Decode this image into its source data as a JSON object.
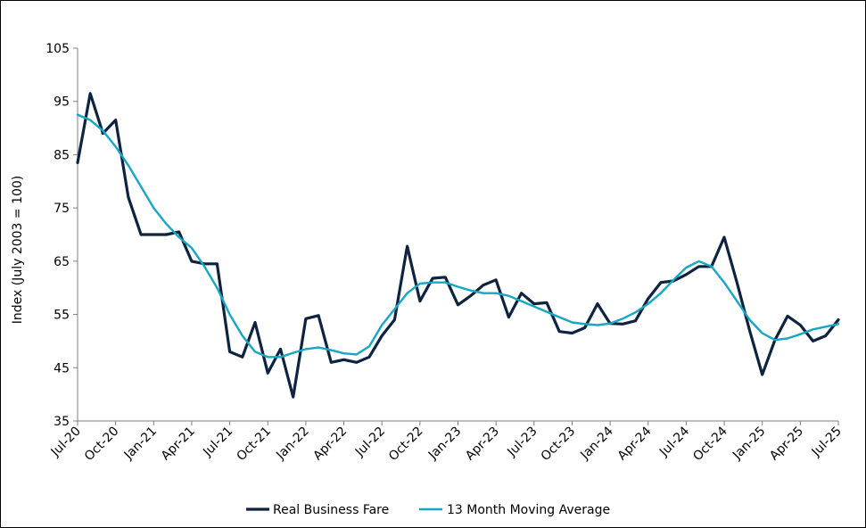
{
  "chart_data": {
    "type": "line",
    "title": "",
    "ylabel": "Index (July 2003 = 100)",
    "xlabel": "",
    "ylim": [
      35,
      105
    ],
    "yticks": [
      35,
      45,
      55,
      65,
      75,
      85,
      95,
      105
    ],
    "grid": false,
    "legend_position": "bottom",
    "x_tick_labels": [
      "Jul-20",
      "Oct-20",
      "Jan-21",
      "Apr-21",
      "Jul-21",
      "Oct-21",
      "Jan-22",
      "Apr-22",
      "Jul-22",
      "Oct-22",
      "Jan-23",
      "Apr-23",
      "Jul-23",
      "Oct-23",
      "Jan-24",
      "Apr-24",
      "Jul-24",
      "Oct-24",
      "Jan-25",
      "Apr-25",
      "Jul-25"
    ],
    "x": [
      "Jul-20",
      "Aug-20",
      "Sep-20",
      "Oct-20",
      "Nov-20",
      "Dec-20",
      "Jan-21",
      "Feb-21",
      "Mar-21",
      "Apr-21",
      "May-21",
      "Jun-21",
      "Jul-21",
      "Aug-21",
      "Sep-21",
      "Oct-21",
      "Nov-21",
      "Dec-21",
      "Jan-22",
      "Feb-22",
      "Mar-22",
      "Apr-22",
      "May-22",
      "Jun-22",
      "Jul-22",
      "Aug-22",
      "Sep-22",
      "Oct-22",
      "Nov-22",
      "Dec-22",
      "Jan-23",
      "Feb-23",
      "Mar-23",
      "Apr-23",
      "May-23",
      "Jun-23",
      "Jul-23",
      "Aug-23",
      "Sep-23",
      "Oct-23",
      "Nov-23",
      "Dec-23",
      "Jan-24",
      "Feb-24",
      "Mar-24",
      "Apr-24",
      "May-24",
      "Jun-24",
      "Jul-24",
      "Aug-24",
      "Sep-24",
      "Oct-24",
      "Nov-24",
      "Dec-24",
      "Jan-25",
      "Feb-25",
      "Mar-25",
      "Apr-25",
      "May-25",
      "Jun-25",
      "Jul-25"
    ],
    "series": [
      {
        "name": "Real Business Fare",
        "color": "#0d2340",
        "values": [
          83.5,
          96.5,
          89,
          91.5,
          77,
          70,
          70,
          70,
          70.5,
          65,
          64.5,
          64.5,
          48,
          47,
          53.5,
          44,
          48.5,
          39.5,
          54.2,
          54.8,
          46,
          46.5,
          46,
          47,
          51,
          54,
          67.8,
          57.5,
          61.8,
          62,
          56.8,
          58.5,
          60.5,
          61.5,
          54.5,
          59,
          57,
          57.2,
          51.8,
          51.5,
          52.5,
          57,
          53.3,
          53.2,
          53.8,
          58,
          61,
          61.3,
          62.5,
          64,
          64,
          69.5,
          61,
          52,
          43.7,
          50.2,
          54.7,
          53,
          50,
          51,
          54
        ]
      },
      {
        "name": "13 Month Moving Average",
        "color": "#17a6c4",
        "values": [
          92.5,
          91.5,
          89.5,
          86.5,
          83,
          79,
          75,
          72,
          69.5,
          67.5,
          64,
          60,
          55,
          51,
          48,
          47,
          47,
          47.8,
          48.5,
          48.8,
          48.3,
          47.7,
          47.5,
          49,
          53,
          56,
          59,
          60.8,
          61,
          61,
          60.2,
          59.5,
          59,
          59,
          58.5,
          57.5,
          56.5,
          55.5,
          54.5,
          53.5,
          53.2,
          53,
          53.3,
          54.2,
          55.4,
          57,
          59,
          61.5,
          63.8,
          65,
          64,
          61,
          57.5,
          54,
          51.5,
          50.2,
          50.5,
          51.3,
          52.2,
          52.7,
          53.2
        ]
      }
    ]
  }
}
